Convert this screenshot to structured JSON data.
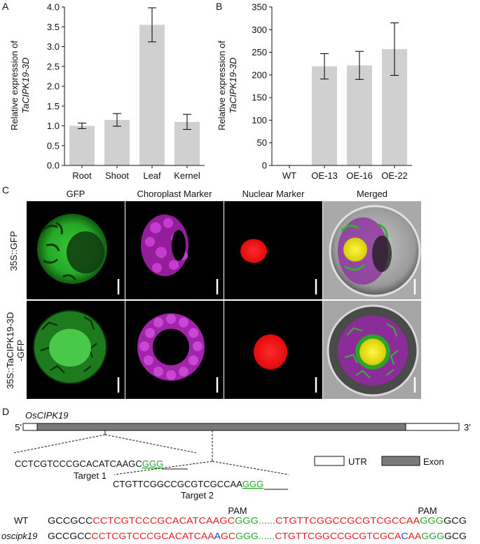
{
  "panel_letters": {
    "a": "A",
    "b": "B",
    "c": "C",
    "d": "D"
  },
  "colors": {
    "bar": "#d0d0d0",
    "gfp": "#2ec42e",
    "chloroplast": "#b026b8",
    "nuclear": "#f01818",
    "red_seq": "#e02020",
    "green_seq": "#2aa52a",
    "blue_seq": "#2040d0"
  },
  "chart_data": [
    {
      "type": "bar",
      "categories": [
        "Root",
        "Shoot",
        "Leaf",
        "Kernel"
      ],
      "values": [
        1.0,
        1.15,
        3.55,
        1.1
      ],
      "errors": [
        0.07,
        0.16,
        0.43,
        0.19
      ],
      "ylim": [
        0,
        4.0
      ],
      "yticks": [
        "0.0",
        "0.5",
        "1.0",
        "1.5",
        "2.0",
        "2.5",
        "3.0",
        "3.5",
        "4.0"
      ],
      "ylabel_line1": "Relative expression of",
      "ylabel_line2": "TaCIPK19-3D"
    },
    {
      "type": "bar",
      "categories": [
        "WT",
        "OE-13",
        "OE-16",
        "OE-22"
      ],
      "values": [
        1,
        219,
        221,
        257
      ],
      "errors": [
        0,
        28,
        31,
        58
      ],
      "ylim": [
        0,
        350
      ],
      "yticks": [
        "0",
        "50",
        "100",
        "150",
        "200",
        "250",
        "300",
        "350"
      ],
      "ylabel_line1": "Relative expression of",
      "ylabel_line2": "TaCIPK19-3D"
    }
  ],
  "micro": {
    "col_headers": [
      "GFP",
      "Choroplast Marker",
      "Nuclear Marker",
      "Merged"
    ],
    "row_labels": [
      "35S::GFP",
      "35S::TaCIPK19-3D",
      "-GFP"
    ]
  },
  "gene": {
    "name": "OsCIPK19",
    "five_prime": "5'",
    "three_prime": "3'",
    "legend_utr": "UTR",
    "legend_exon": "Exon",
    "target1_seq": "CCTCGTCCCGCACATCAAGC",
    "target1_pam": "GGG",
    "target1_label": "Target 1",
    "target2_seq": "CTGTTCGGCCGCGTCGCCAA",
    "target2_pam": "GGG",
    "target2_label": "Target 2",
    "pam_label": "PAM",
    "wt_label": "WT",
    "mut_label": "oscipk19",
    "wt_seq": [
      {
        "t": "GCCGCC",
        "c": "black"
      },
      {
        "t": "CCTCGTCCCGCACATCAAGC",
        "c": "red"
      },
      {
        "t": "GGG",
        "c": "green"
      },
      {
        "t": "......",
        "c": "green"
      },
      {
        "t": "CTGTTCGGCCGCGTCGCCAA",
        "c": "red"
      },
      {
        "t": "GGG",
        "c": "green"
      },
      {
        "t": "GCG",
        "c": "black"
      }
    ],
    "mut_seq": [
      {
        "t": "GCCGCC",
        "c": "black"
      },
      {
        "t": "CCTCGTCCCGCACATCAA",
        "c": "red"
      },
      {
        "t": "A",
        "c": "blue"
      },
      {
        "t": "GC",
        "c": "red"
      },
      {
        "t": "GGG",
        "c": "green"
      },
      {
        "t": "......",
        "c": "green"
      },
      {
        "t": "CTGTTCGGCCGCGTCGCA",
        "c": "red"
      },
      {
        "t": "C",
        "c": "blue"
      },
      {
        "t": "AA",
        "c": "red"
      },
      {
        "t": "GGG",
        "c": "green"
      },
      {
        "t": "GCG",
        "c": "black"
      }
    ]
  }
}
